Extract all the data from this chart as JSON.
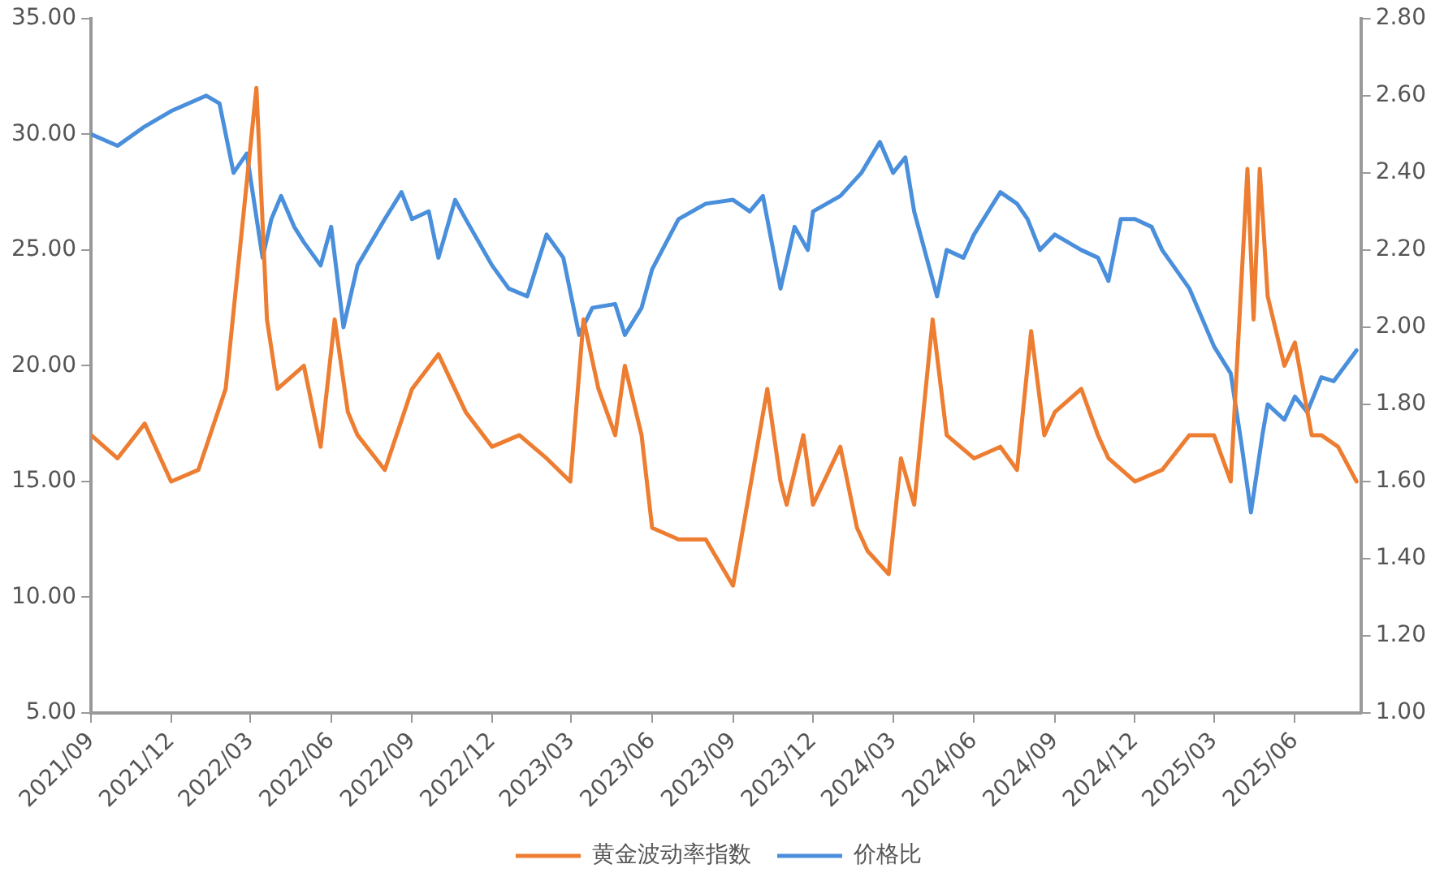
{
  "chart_data": {
    "type": "line",
    "legend": "bottom",
    "grid": false,
    "marker": "none",
    "line_style": "solid",
    "xlim": [
      "2021-09-01",
      "2025-08-15"
    ],
    "xticks": [
      {
        "value": "2021-09-01",
        "label": "2021/09"
      },
      {
        "value": "2021-12-01",
        "label": "2021/12"
      },
      {
        "value": "2022-03-01",
        "label": "2022/03"
      },
      {
        "value": "2022-06-01",
        "label": "2022/06"
      },
      {
        "value": "2022-09-01",
        "label": "2022/09"
      },
      {
        "value": "2022-12-01",
        "label": "2022/12"
      },
      {
        "value": "2023-03-01",
        "label": "2023/03"
      },
      {
        "value": "2023-06-01",
        "label": "2023/06"
      },
      {
        "value": "2023-09-01",
        "label": "2023/09"
      },
      {
        "value": "2023-12-01",
        "label": "2023/12"
      },
      {
        "value": "2024-03-01",
        "label": "2024/03"
      },
      {
        "value": "2024-06-01",
        "label": "2024/06"
      },
      {
        "value": "2024-09-01",
        "label": "2024/09"
      },
      {
        "value": "2024-12-01",
        "label": "2024/12"
      },
      {
        "value": "2025-03-01",
        "label": "2025/03"
      },
      {
        "value": "2025-06-01",
        "label": "2025/06"
      }
    ],
    "ylim": [
      5,
      35
    ],
    "yticks": [
      {
        "value": 5,
        "label": "5.00"
      },
      {
        "value": 10,
        "label": "10.00"
      },
      {
        "value": 15,
        "label": "15.00"
      },
      {
        "value": 20,
        "label": "20.00"
      },
      {
        "value": 25,
        "label": "25.00"
      },
      {
        "value": 30,
        "label": "30.00"
      },
      {
        "value": 35,
        "label": "35.00"
      }
    ],
    "y2lim": [
      1,
      2.8
    ],
    "y2ticks": [
      {
        "value": 1,
        "label": "1.00"
      },
      {
        "value": 1.2,
        "label": "1.20"
      },
      {
        "value": 1.4,
        "label": "1.40"
      },
      {
        "value": 1.6,
        "label": "1.60"
      },
      {
        "value": 1.8,
        "label": "1.80"
      },
      {
        "value": 2,
        "label": "2.00"
      },
      {
        "value": 2.2,
        "label": "2.20"
      },
      {
        "value": 2.4,
        "label": "2.40"
      },
      {
        "value": 2.6,
        "label": "2.60"
      },
      {
        "value": 2.8,
        "label": "2.80"
      }
    ],
    "series": [
      {
        "name": "黄金波动率指数",
        "color": "#ed7d31",
        "x": [
          "2021-09-01",
          "2021-10-01",
          "2021-11-01",
          "2021-12-01",
          "2022-01-01",
          "2022-02-01",
          "2022-03-08",
          "2022-03-20",
          "2022-04-01",
          "2022-05-01",
          "2022-05-20",
          "2022-06-05",
          "2022-06-20",
          "2022-07-01",
          "2022-08-01",
          "2022-09-01",
          "2022-10-01",
          "2022-11-01",
          "2022-12-01",
          "2023-01-01",
          "2023-02-01",
          "2023-02-28",
          "2023-03-15",
          "2023-04-01",
          "2023-04-20",
          "2023-05-01",
          "2023-05-20",
          "2023-06-01",
          "2023-07-01",
          "2023-08-01",
          "2023-09-01",
          "2023-10-10",
          "2023-10-25",
          "2023-11-01",
          "2023-11-20",
          "2023-12-01",
          "2024-01-01",
          "2024-01-20",
          "2024-02-01",
          "2024-02-25",
          "2024-03-10",
          "2024-03-25",
          "2024-04-15",
          "2024-05-01",
          "2024-06-01",
          "2024-07-01",
          "2024-07-20",
          "2024-08-05",
          "2024-08-20",
          "2024-09-01",
          "2024-10-01",
          "2024-10-20",
          "2024-11-01",
          "2024-12-01",
          "2025-01-01",
          "2025-02-01",
          "2025-03-01",
          "2025-03-20",
          "2025-04-08",
          "2025-04-15",
          "2025-04-22",
          "2025-05-01",
          "2025-05-20",
          "2025-06-01",
          "2025-06-20",
          "2025-07-01",
          "2025-07-20",
          "2025-08-10"
        ],
        "values": [
          17,
          16,
          17.5,
          15,
          15.5,
          19,
          32,
          22,
          19,
          20,
          16.5,
          22,
          18,
          17,
          15.5,
          19,
          20.5,
          18,
          16.5,
          17,
          16,
          15,
          22,
          19,
          17,
          20,
          17,
          13,
          12.5,
          12.5,
          10.5,
          19,
          15,
          14,
          17,
          14,
          16.5,
          13,
          12,
          11,
          16,
          14,
          22,
          17,
          16,
          16.5,
          15.5,
          21.5,
          17,
          18,
          19,
          17,
          16,
          15,
          15.5,
          17,
          17,
          15,
          28.5,
          22,
          28.5,
          23,
          20,
          21,
          17,
          17,
          16.5,
          15
        ]
      },
      {
        "name": "价格比",
        "color": "#4a8fdb",
        "axis": "y2",
        "x": [
          "2021-09-01",
          "2021-10-01",
          "2021-11-01",
          "2021-12-01",
          "2022-01-10",
          "2022-01-25",
          "2022-02-10",
          "2022-02-25",
          "2022-03-15",
          "2022-03-25",
          "2022-04-05",
          "2022-04-20",
          "2022-05-01",
          "2022-05-20",
          "2022-06-01",
          "2022-06-15",
          "2022-07-01",
          "2022-08-01",
          "2022-08-20",
          "2022-09-01",
          "2022-09-20",
          "2022-10-01",
          "2022-10-20",
          "2022-11-01",
          "2022-12-01",
          "2022-12-20",
          "2023-01-10",
          "2023-02-01",
          "2023-02-20",
          "2023-03-10",
          "2023-03-25",
          "2023-04-20",
          "2023-05-01",
          "2023-05-20",
          "2023-06-01",
          "2023-07-01",
          "2023-08-01",
          "2023-09-01",
          "2023-09-20",
          "2023-10-05",
          "2023-10-25",
          "2023-11-10",
          "2023-11-25",
          "2023-12-01",
          "2024-01-01",
          "2024-01-25",
          "2024-02-15",
          "2024-03-01",
          "2024-03-15",
          "2024-03-25",
          "2024-04-20",
          "2024-05-01",
          "2024-05-20",
          "2024-06-01",
          "2024-07-01",
          "2024-07-20",
          "2024-08-01",
          "2024-08-15",
          "2024-09-01",
          "2024-10-01",
          "2024-10-20",
          "2024-11-01",
          "2024-11-15",
          "2024-12-01",
          "2024-12-20",
          "2025-01-01",
          "2025-02-01",
          "2025-03-01",
          "2025-03-20",
          "2025-04-01",
          "2025-04-12",
          "2025-04-25",
          "2025-05-01",
          "2025-05-20",
          "2025-06-01",
          "2025-06-15",
          "2025-07-01",
          "2025-07-15",
          "2025-08-10"
        ],
        "values": [
          2.5,
          2.47,
          2.52,
          2.56,
          2.6,
          2.58,
          2.4,
          2.45,
          2.18,
          2.28,
          2.34,
          2.26,
          2.22,
          2.16,
          2.26,
          2.0,
          2.16,
          2.28,
          2.35,
          2.28,
          2.3,
          2.18,
          2.33,
          2.28,
          2.16,
          2.1,
          2.08,
          2.24,
          2.18,
          1.98,
          2.05,
          2.06,
          1.98,
          2.05,
          2.15,
          2.28,
          2.32,
          2.33,
          2.3,
          2.34,
          2.1,
          2.26,
          2.2,
          2.3,
          2.34,
          2.4,
          2.48,
          2.4,
          2.44,
          2.3,
          2.08,
          2.2,
          2.18,
          2.24,
          2.35,
          2.32,
          2.28,
          2.2,
          2.24,
          2.2,
          2.18,
          2.12,
          2.28,
          2.28,
          2.26,
          2.2,
          2.1,
          1.95,
          1.88,
          1.7,
          1.52,
          1.72,
          1.8,
          1.76,
          1.82,
          1.78,
          1.87,
          1.86,
          1.94
        ]
      }
    ]
  }
}
